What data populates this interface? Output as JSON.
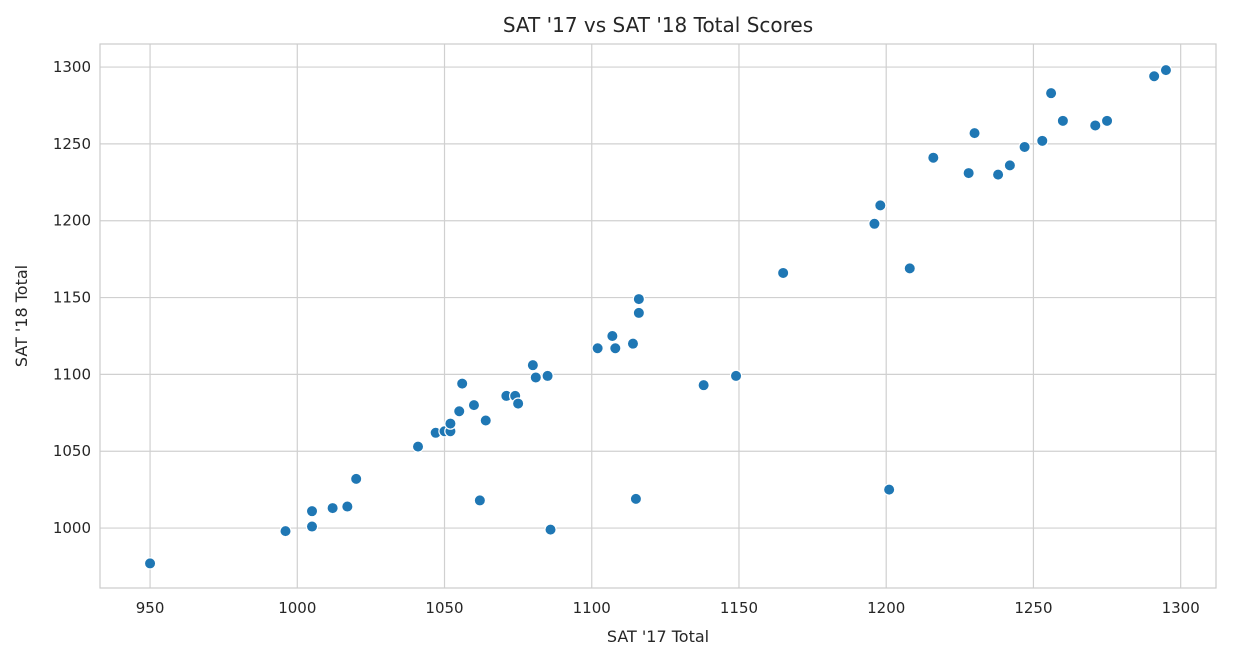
{
  "chart_data": {
    "type": "scatter",
    "title": "SAT '17 vs SAT '18 Total Scores",
    "xlabel": "SAT '17 Total",
    "ylabel": "SAT '18 Total",
    "xlim": [
      933,
      1312
    ],
    "ylim": [
      961,
      1315
    ],
    "xticks": [
      950,
      1000,
      1050,
      1100,
      1150,
      1200,
      1250,
      1300
    ],
    "yticks": [
      1000,
      1050,
      1100,
      1150,
      1200,
      1250,
      1300
    ],
    "grid": true,
    "color": "#1f77b4",
    "points": [
      [
        950,
        977
      ],
      [
        996,
        998
      ],
      [
        1005,
        1001
      ],
      [
        1005,
        1011
      ],
      [
        1012,
        1013
      ],
      [
        1017,
        1014
      ],
      [
        1020,
        1032
      ],
      [
        1041,
        1053
      ],
      [
        1047,
        1062
      ],
      [
        1050,
        1063
      ],
      [
        1052,
        1063
      ],
      [
        1052,
        1068
      ],
      [
        1055,
        1076
      ],
      [
        1056,
        1094
      ],
      [
        1060,
        1080
      ],
      [
        1062,
        1018
      ],
      [
        1064,
        1070
      ],
      [
        1071,
        1086
      ],
      [
        1074,
        1086
      ],
      [
        1075,
        1081
      ],
      [
        1080,
        1106
      ],
      [
        1081,
        1098
      ],
      [
        1085,
        1099
      ],
      [
        1086,
        999
      ],
      [
        1102,
        1117
      ],
      [
        1107,
        1125
      ],
      [
        1108,
        1117
      ],
      [
        1114,
        1120
      ],
      [
        1115,
        1019
      ],
      [
        1116,
        1140
      ],
      [
        1116,
        1149
      ],
      [
        1138,
        1093
      ],
      [
        1149,
        1099
      ],
      [
        1165,
        1166
      ],
      [
        1196,
        1198
      ],
      [
        1198,
        1210
      ],
      [
        1201,
        1025
      ],
      [
        1208,
        1169
      ],
      [
        1216,
        1241
      ],
      [
        1228,
        1231
      ],
      [
        1230,
        1257
      ],
      [
        1238,
        1230
      ],
      [
        1242,
        1236
      ],
      [
        1247,
        1248
      ],
      [
        1253,
        1252
      ],
      [
        1256,
        1283
      ],
      [
        1260,
        1265
      ],
      [
        1271,
        1262
      ],
      [
        1275,
        1265
      ],
      [
        1291,
        1294
      ],
      [
        1295,
        1298
      ]
    ]
  }
}
